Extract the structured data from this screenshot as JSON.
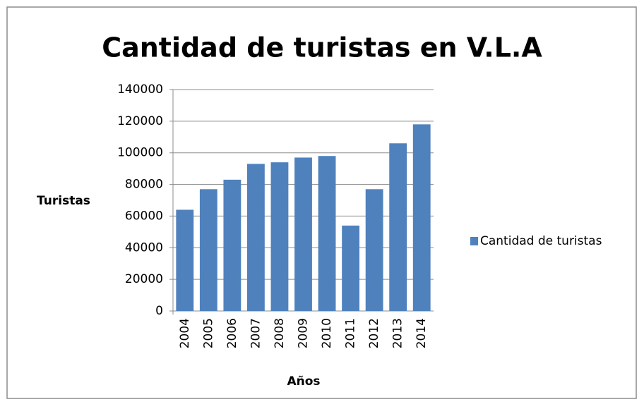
{
  "chart_data": {
    "type": "bar",
    "title": "Cantidad de turistas  en V.L.A",
    "x_label": "Años",
    "y_label": "Turistas",
    "categories": [
      "2004",
      "2005",
      "2006",
      "2007",
      "2008",
      "2009",
      "2010",
      "2011",
      "2012",
      "2013",
      "2014"
    ],
    "series": [
      {
        "name": "Cantidad de turistas",
        "color": "#4f81bd",
        "values": [
          64000,
          77000,
          83000,
          93000,
          94000,
          97000,
          98000,
          54000,
          77000,
          106000,
          118000
        ]
      }
    ],
    "ylim": [
      0,
      140000
    ],
    "yticks": [
      0,
      20000,
      40000,
      60000,
      80000,
      100000,
      120000,
      140000
    ],
    "grid": true,
    "legend": "right"
  }
}
